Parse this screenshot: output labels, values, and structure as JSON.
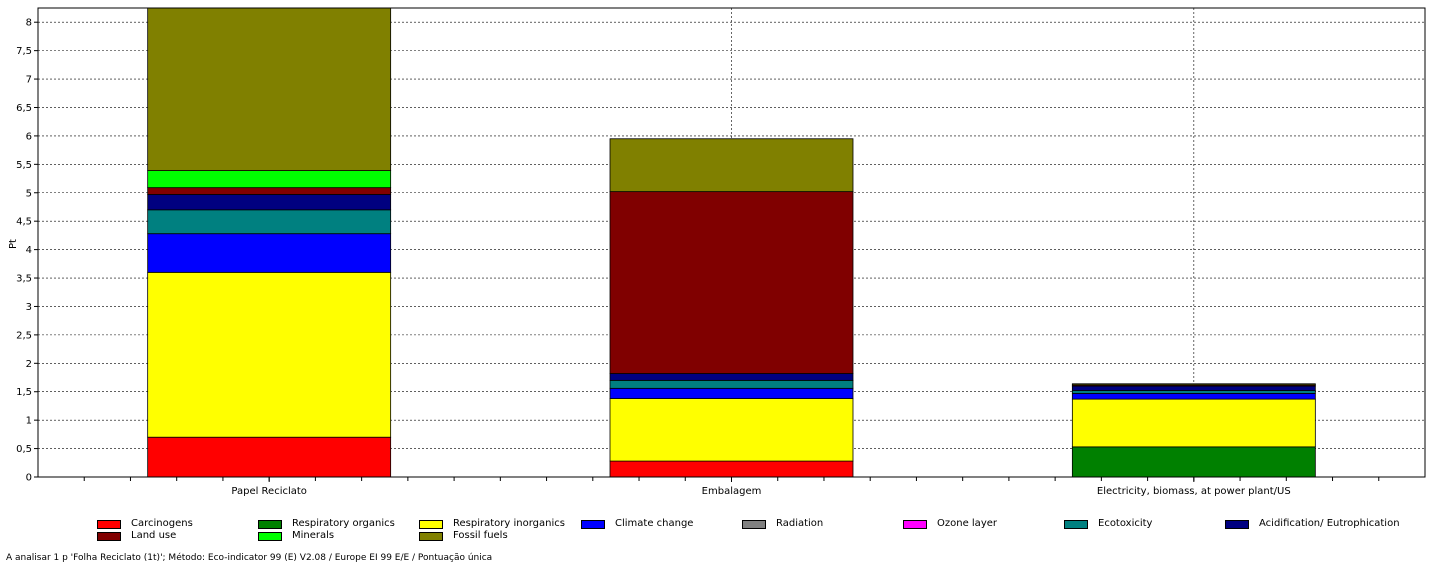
{
  "chart_data": {
    "type": "bar",
    "stacked": true,
    "ylabel": "Pt",
    "ylim": [
      0,
      8.25
    ],
    "yticks": [
      "0",
      "0,5",
      "1",
      "1,5",
      "2",
      "2,5",
      "3",
      "3,5",
      "4",
      "4,5",
      "5",
      "5,5",
      "6",
      "6,5",
      "7",
      "7,5",
      "8"
    ],
    "grid": true,
    "legend_position": "bottom",
    "categories": [
      "Papel Reciclato",
      "Embalagem",
      "Electricity, biomass, at power plant/US"
    ],
    "series": [
      {
        "name": "Carcinogens",
        "color": "#ff0000",
        "values": [
          0.7,
          0.28,
          0.0
        ]
      },
      {
        "name": "Respiratory organics",
        "color": "#008000",
        "values": [
          0.0,
          0.0,
          0.53
        ]
      },
      {
        "name": "Respiratory inorganics",
        "color": "#ffff00",
        "values": [
          2.9,
          1.1,
          0.84
        ]
      },
      {
        "name": "Climate change",
        "color": "#0000ff",
        "values": [
          0.68,
          0.18,
          0.1
        ]
      },
      {
        "name": "Radiation",
        "color": "#808080",
        "values": [
          0.0,
          0.0,
          0.0
        ]
      },
      {
        "name": "Ozone layer",
        "color": "#ff00ff",
        "values": [
          0.0,
          0.0,
          0.0
        ]
      },
      {
        "name": "Ecotoxicity",
        "color": "#008080",
        "values": [
          0.42,
          0.14,
          0.05
        ]
      },
      {
        "name": "Acidification/ Eutrophication",
        "color": "#000080",
        "values": [
          0.27,
          0.12,
          0.08
        ]
      },
      {
        "name": "Land use",
        "color": "#800000",
        "values": [
          0.12,
          3.2,
          0.02
        ]
      },
      {
        "name": "Minerals",
        "color": "#00ff00",
        "values": [
          0.3,
          0.0,
          0.0
        ]
      },
      {
        "name": "Fossil fuels",
        "color": "#808000",
        "values": [
          2.86,
          0.93,
          0.02
        ]
      }
    ]
  },
  "footer": "A analisar 1 p 'Folha Reciclato (1t)';  Método: Eco-indicator 99 (E) V2.08 / Europe EI 99 E/E / Pontuação única"
}
